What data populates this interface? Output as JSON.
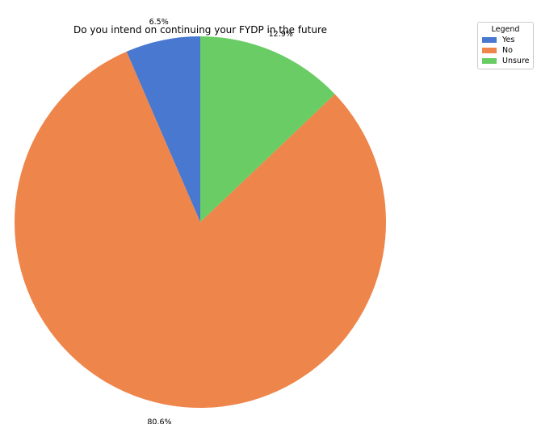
{
  "chart_data": {
    "type": "pie",
    "title": "Do you intend on continuing your FYDP in the future",
    "categories": [
      "Yes",
      "No",
      "Unsure"
    ],
    "values": [
      6.5,
      80.6,
      12.9
    ],
    "value_labels": [
      "6.5%",
      "80.6%",
      "12.9%"
    ],
    "colors": [
      "#4878d0",
      "#ee854a",
      "#6acc64"
    ],
    "start_angle_deg": 90,
    "direction": "counterclockwise",
    "legend": {
      "title": "Legend",
      "placement": "top-right, outside plot",
      "entries": [
        "Yes",
        "No",
        "Unsure"
      ]
    }
  }
}
